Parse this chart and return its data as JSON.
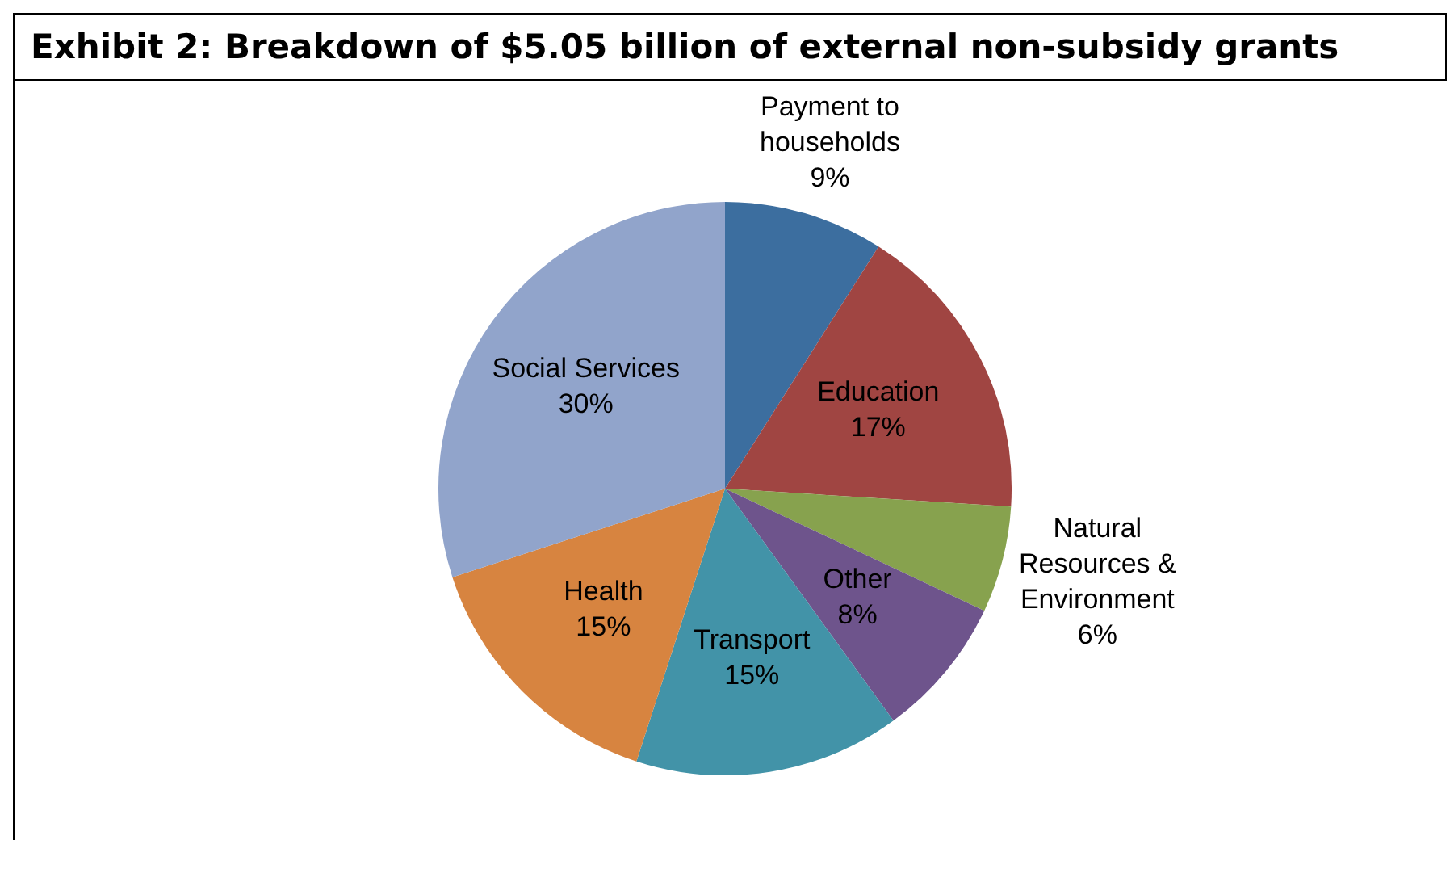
{
  "chart_data": {
    "type": "pie",
    "title": "Exhibit 2: Breakdown of $5.05 billion of external non-subsidy grants",
    "categories": [
      "Payment to households",
      "Education",
      "Natural Resources & Environment",
      "Other",
      "Transport",
      "Health",
      "Social Services"
    ],
    "values": [
      9,
      17,
      6,
      8,
      15,
      15,
      30
    ],
    "colors": [
      "#3c6e9f",
      "#a04542",
      "#87a24e",
      "#6e548c",
      "#4293a8",
      "#d78440",
      "#91a4cb"
    ],
    "value_labels": [
      "9%",
      "17%",
      "6%",
      "8%",
      "15%",
      "15%",
      "30%"
    ],
    "legend": false
  }
}
